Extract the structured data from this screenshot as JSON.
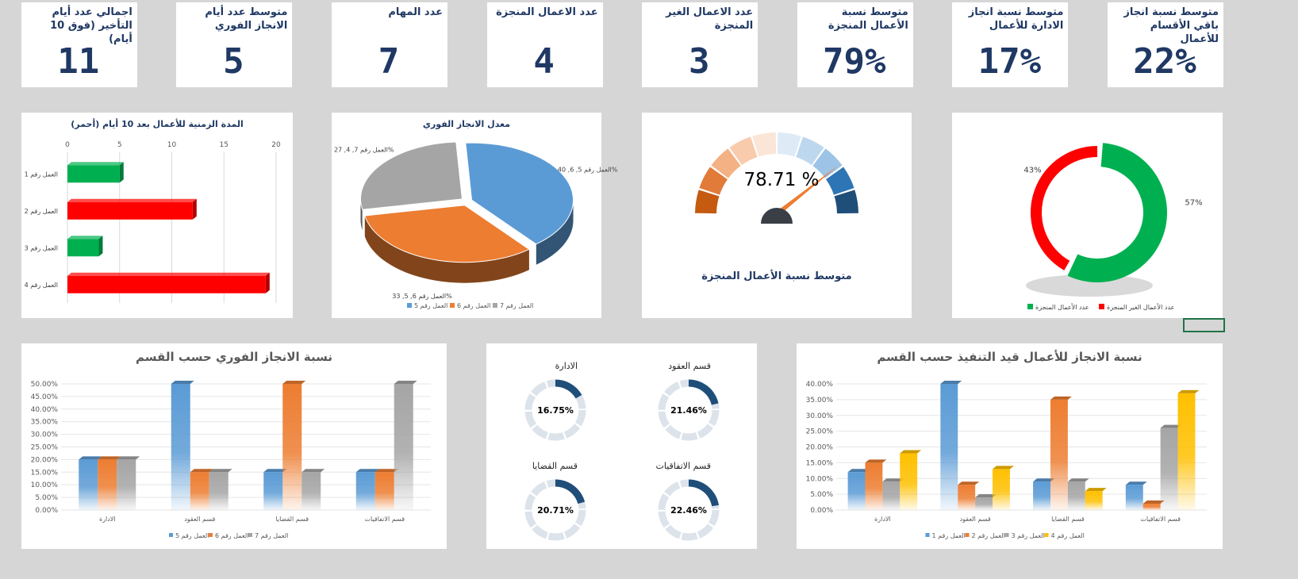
{
  "kpis": [
    {
      "title": "متوسط نسبة انجاز باقي الأقسام للأعمال",
      "value": "22%"
    },
    {
      "title": "متوسط نسبة انجاز الادارة للأعمال",
      "value": "17%"
    },
    {
      "title": "متوسط نسبة الأعمال المنجزة",
      "value": "79%"
    },
    {
      "title": "عدد الاعمال الغير المنجزة",
      "value": 3
    },
    {
      "title": "عدد الاعمال المنجزة",
      "value": 4
    },
    {
      "title": "عدد المهام",
      "value": 7
    },
    {
      "title": "متوسط عدد أيام الانجاز الفوري",
      "value": 5
    },
    {
      "title": "اجمالي عدد أيام التأخير (فوق 10 أيام)",
      "value": 11
    }
  ],
  "chart_data": [
    {
      "type": "hbar",
      "title": "المدة الزمنية للأعمال بعد 10 أيام (أحمر)",
      "categories": [
        "العمل رقم 1",
        "العمل رقم 2",
        "العمل رقم 3",
        "العمل رقم 4"
      ],
      "values": [
        5,
        12,
        3,
        19
      ],
      "colors": [
        "#00b050",
        "#ff0000",
        "#00b050",
        "#ff0000"
      ],
      "xlim": [
        0,
        20
      ],
      "xticks": [
        0,
        5,
        10,
        15,
        20
      ],
      "grid": true
    },
    {
      "type": "pie",
      "title": "معدل الانجاز الفوري",
      "categories": [
        "العمل رقم 5",
        "العمل رقم 6",
        "العمل رقم 7"
      ],
      "values": [
        40,
        33,
        27
      ],
      "value_labels": [
        "العمل رقم 5, 6, 40%",
        "العمل رقم 6, 5, 33%",
        "العمل رقم 7, 4, 27%"
      ],
      "colors": [
        "#5b9bd5",
        "#ed7d31",
        "#a5a5a5"
      ]
    },
    {
      "type": "gauge",
      "title": "متوسط نسبة الأعمال المنجزة",
      "value": 78.71,
      "value_label": "78.71 %",
      "ylim": [
        0,
        100
      ],
      "needle_color": "#ed7d31",
      "colors": [
        "#c55a11",
        "#e07b39",
        "#f4b183",
        "#f8cbad",
        "#fbe5d6",
        "#deebf7",
        "#bdd7ee",
        "#9dc3e6",
        "#2e75b6",
        "#1f4e79"
      ]
    },
    {
      "type": "donut",
      "categories": [
        "عدد الأعمال المنجزة",
        "عدد الأعمال الغير المنجزة"
      ],
      "values": [
        57,
        43
      ],
      "value_labels": [
        "57%",
        "43%"
      ],
      "colors": [
        "#00b050",
        "#ff0000"
      ]
    },
    {
      "type": "column",
      "title": "نسبة الانجاز الفوري حسب القسم",
      "categories": [
        "الادارة",
        "قسم العقود",
        "قسم القضايا",
        "قسم الاتفاقيات"
      ],
      "series": [
        {
          "name": "العمل رقم 5",
          "color": "#5b9bd5",
          "values": [
            20,
            50,
            15,
            15
          ]
        },
        {
          "name": "العمل رقم 6",
          "color": "#ed7d31",
          "values": [
            20,
            15,
            50,
            15
          ]
        },
        {
          "name": "العمل رقم 7",
          "color": "#a5a5a5",
          "values": [
            20,
            15,
            15,
            50
          ]
        }
      ],
      "ylim": [
        0,
        50
      ],
      "yticks": [
        {
          "value": 0,
          "label": "0.00%"
        },
        {
          "value": 5,
          "label": "5.00%"
        },
        {
          "value": 10,
          "label": "10.00%"
        },
        {
          "value": 15,
          "label": "15.00%"
        },
        {
          "value": 20,
          "label": "20.00%"
        },
        {
          "value": 25,
          "label": "25.00%"
        },
        {
          "value": 30,
          "label": "30.00%"
        },
        {
          "value": 35,
          "label": "35.00%"
        },
        {
          "value": 40,
          "label": "40.00%"
        },
        {
          "value": 45,
          "label": "45.00%"
        },
        {
          "value": 50,
          "label": "50.00%"
        }
      ],
      "grid": true
    },
    {
      "type": "ring",
      "categories": [
        "قسم العقود",
        "الادارة",
        "قسم الاتفاقيات",
        "قسم القضايا"
      ],
      "values": [
        21.46,
        16.75,
        22.46,
        20.71
      ],
      "value_labels": [
        "21.46%",
        "16.75%",
        "22.46%",
        "20.71%"
      ],
      "ylim": [
        0,
        100
      ],
      "color": "#1f4e79"
    },
    {
      "type": "column",
      "title": "نسبة الانجاز للأعمال قيد التنفيذ حسب القسم",
      "categories": [
        "الادارة",
        "قسم العقود",
        "قسم القضايا",
        "قسم الاتفاقيات"
      ],
      "series": [
        {
          "name": "العمل رقم 1",
          "color": "#5b9bd5",
          "values": [
            12,
            40,
            9,
            8
          ]
        },
        {
          "name": "العمل رقم 2",
          "color": "#ed7d31",
          "values": [
            15,
            8,
            35,
            2
          ]
        },
        {
          "name": "العمل رقم 3",
          "color": "#a5a5a5",
          "values": [
            9,
            4,
            9,
            26
          ]
        },
        {
          "name": "العمل رقم 4",
          "color": "#ffc000",
          "values": [
            18,
            13,
            6,
            37
          ]
        }
      ],
      "ylim": [
        0,
        40
      ],
      "yticks": [
        {
          "value": 0,
          "label": "0.00%"
        },
        {
          "value": 5,
          "label": "5.00%"
        },
        {
          "value": 10,
          "label": "10.00%"
        },
        {
          "value": 15,
          "label": "15.00%"
        },
        {
          "value": 20,
          "label": "20.00%"
        },
        {
          "value": 25,
          "label": "25.00%"
        },
        {
          "value": 30,
          "label": "30.00%"
        },
        {
          "value": 35,
          "label": "35.00%"
        },
        {
          "value": 40,
          "label": "40.00%"
        }
      ],
      "grid": true
    }
  ]
}
